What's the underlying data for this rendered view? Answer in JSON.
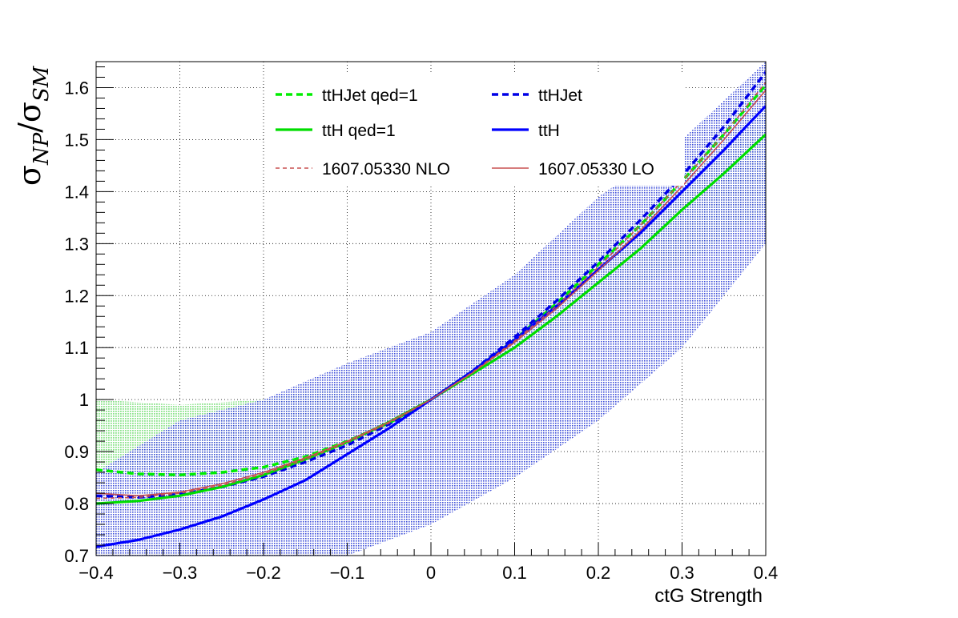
{
  "chart_data": {
    "type": "line",
    "title": "",
    "xlabel": "ctG Strength",
    "ylabel": {
      "symbol": "σ",
      "num_sub": "NP",
      "slash": "/",
      "den_sub": "SM"
    },
    "xlim": [
      -0.4,
      0.4
    ],
    "ylim": [
      0.7,
      1.65
    ],
    "grid": true,
    "legend_position": "top-center",
    "x_ticks": [
      "−0.4",
      "−0.3",
      "−0.2",
      "−0.1",
      "0",
      "0.1",
      "0.2",
      "0.3",
      "0.4"
    ],
    "x_tick_values": [
      -0.4,
      -0.3,
      -0.2,
      -0.1,
      0,
      0.1,
      0.2,
      0.3,
      0.4
    ],
    "y_ticks": [
      "0.7",
      "0.8",
      "0.9",
      "1",
      "1.1",
      "1.2",
      "1.3",
      "1.4",
      "1.5",
      "1.6"
    ],
    "y_tick_values": [
      0.7,
      0.8,
      0.9,
      1.0,
      1.1,
      1.2,
      1.3,
      1.4,
      1.5,
      1.6
    ],
    "bands": [
      {
        "color": "#7fe07f",
        "x": [
          -0.4,
          -0.3,
          -0.2,
          -0.1,
          0,
          0.1,
          0.2,
          0.3,
          0.4
        ],
        "low": [
          0.87,
          0.87,
          0.89,
          0.93,
          1.0,
          1.08,
          1.17,
          1.26,
          1.36
        ],
        "high": [
          1.0,
          0.99,
          1.0,
          1.03,
          1.0,
          1.12,
          1.27,
          1.41,
          1.56
        ]
      },
      {
        "color": "#2a3cd6",
        "x": [
          -0.4,
          -0.3,
          -0.2,
          -0.1,
          0,
          0.1,
          0.2,
          0.3,
          0.4
        ],
        "low": [
          0.7,
          0.7,
          0.7,
          0.7,
          0.76,
          0.85,
          0.96,
          1.1,
          1.3
        ],
        "high": [
          0.86,
          0.96,
          1.0,
          1.07,
          1.13,
          1.24,
          1.39,
          1.5,
          1.65
        ]
      }
    ],
    "series": [
      {
        "name": "ttHJet qed=1",
        "color": "#00ee00",
        "dash": "dashed",
        "x": [
          -0.4,
          -0.35,
          -0.3,
          -0.25,
          -0.2,
          -0.15,
          -0.1,
          -0.05,
          0,
          0.05,
          0.1,
          0.15,
          0.2,
          0.25,
          0.3,
          0.35,
          0.4
        ],
        "y": [
          0.865,
          0.857,
          0.855,
          0.86,
          0.87,
          0.89,
          0.92,
          0.955,
          1.0,
          1.055,
          1.115,
          1.185,
          1.26,
          1.335,
          1.42,
          1.51,
          1.605
        ]
      },
      {
        "name": "ttHJet",
        "color": "#0000e6",
        "dash": "dashed",
        "x": [
          -0.4,
          -0.35,
          -0.3,
          -0.25,
          -0.2,
          -0.15,
          -0.1,
          -0.05,
          0,
          0.05,
          0.1,
          0.15,
          0.2,
          0.25,
          0.3,
          0.35,
          0.4
        ],
        "y": [
          0.815,
          0.812,
          0.818,
          0.832,
          0.852,
          0.88,
          0.912,
          0.953,
          1.0,
          1.055,
          1.12,
          1.19,
          1.265,
          1.345,
          1.43,
          1.525,
          1.63
        ]
      },
      {
        "name": "ttH qed=1",
        "color": "#00dd00",
        "dash": "solid",
        "x": [
          -0.4,
          -0.35,
          -0.3,
          -0.25,
          -0.2,
          -0.15,
          -0.1,
          -0.05,
          0,
          0.05,
          0.1,
          0.15,
          0.2,
          0.25,
          0.3,
          0.35,
          0.4
        ],
        "y": [
          0.8,
          0.805,
          0.815,
          0.832,
          0.855,
          0.885,
          0.918,
          0.957,
          1.0,
          1.05,
          1.1,
          1.16,
          1.225,
          1.29,
          1.365,
          1.435,
          1.51
        ]
      },
      {
        "name": "ttH",
        "color": "#0000ff",
        "dash": "solid",
        "x": [
          -0.4,
          -0.35,
          -0.3,
          -0.25,
          -0.2,
          -0.15,
          -0.1,
          -0.05,
          0,
          0.05,
          0.1,
          0.15,
          0.2,
          0.25,
          0.3,
          0.35,
          0.4
        ],
        "y": [
          0.717,
          0.73,
          0.75,
          0.775,
          0.808,
          0.845,
          0.895,
          0.945,
          1.0,
          1.055,
          1.115,
          1.18,
          1.25,
          1.32,
          1.4,
          1.48,
          1.565
        ]
      },
      {
        "name": "1607.05330 NLO",
        "color": "#c85050",
        "dash": "dashed-fine",
        "x": [
          -0.4,
          -0.35,
          -0.3,
          -0.25,
          -0.2,
          -0.15,
          -0.1,
          -0.05,
          0,
          0.05,
          0.1,
          0.15,
          0.2,
          0.25,
          0.3,
          0.35,
          0.4
        ],
        "y": [
          0.81,
          0.812,
          0.82,
          0.835,
          0.857,
          0.885,
          0.918,
          0.955,
          1.0,
          1.053,
          1.113,
          1.18,
          1.255,
          1.335,
          1.42,
          1.51,
          1.61
        ]
      },
      {
        "name": "1607.05330 LO",
        "color": "#c85050",
        "dash": "solid-thin",
        "x": [
          -0.4,
          -0.35,
          -0.3,
          -0.25,
          -0.2,
          -0.15,
          -0.1,
          -0.05,
          0,
          0.05,
          0.1,
          0.15,
          0.2,
          0.25,
          0.3,
          0.35,
          0.4
        ],
        "y": [
          0.82,
          0.815,
          0.822,
          0.838,
          0.86,
          0.888,
          0.92,
          0.957,
          1.0,
          1.052,
          1.11,
          1.175,
          1.248,
          1.325,
          1.41,
          1.5,
          1.595
        ]
      }
    ],
    "legend": [
      {
        "label": "ttHJet qed=1",
        "color": "#00ee00",
        "dash": "dashed"
      },
      {
        "label": "ttHJet",
        "color": "#0000e6",
        "dash": "dashed"
      },
      {
        "label": "ttH qed=1",
        "color": "#00dd00",
        "dash": "solid"
      },
      {
        "label": "ttH",
        "color": "#0000ff",
        "dash": "solid"
      },
      {
        "label": "1607.05330 NLO",
        "color": "#c85050",
        "dash": "dashed-fine"
      },
      {
        "label": "1607.05330 LO",
        "color": "#c85050",
        "dash": "solid-thin"
      }
    ]
  }
}
